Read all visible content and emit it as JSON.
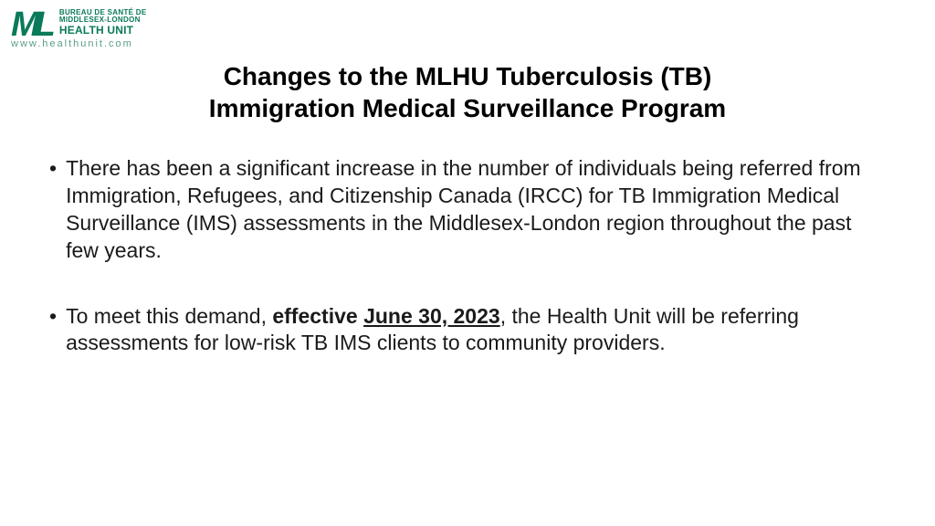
{
  "logo": {
    "letter_m": "M",
    "letter_l": "L",
    "line1": "BUREAU DE SANTÉ DE",
    "line2": "MIDDLESEX-LONDON",
    "line3": "HEALTH UNIT",
    "url": "www.healthunit.com",
    "brand_color": "#0a7a5a",
    "url_color": "#5a9e8a"
  },
  "title": {
    "line1": "Changes to the MLHU Tuberculosis (TB)",
    "line2": "Immigration Medical Surveillance Program",
    "fontsize": 28,
    "color": "#000000"
  },
  "bullets": [
    {
      "text": "There has been a significant increase in the number of individuals being referred from Immigration, Refugees, and Citizenship Canada (IRCC) for TB Immigration Medical Surveillance (IMS) assessments in the Middlesex-London region throughout the past few years."
    },
    {
      "prefix": "To meet this demand, ",
      "bold_prefix": "effective ",
      "bold_underline": "June 30, 2023",
      "suffix": ", the Health Unit will be referring assessments for low-risk TB IMS clients to community providers."
    }
  ],
  "body_fontsize": 23,
  "body_color": "#1a1a1a",
  "background_color": "#ffffff"
}
